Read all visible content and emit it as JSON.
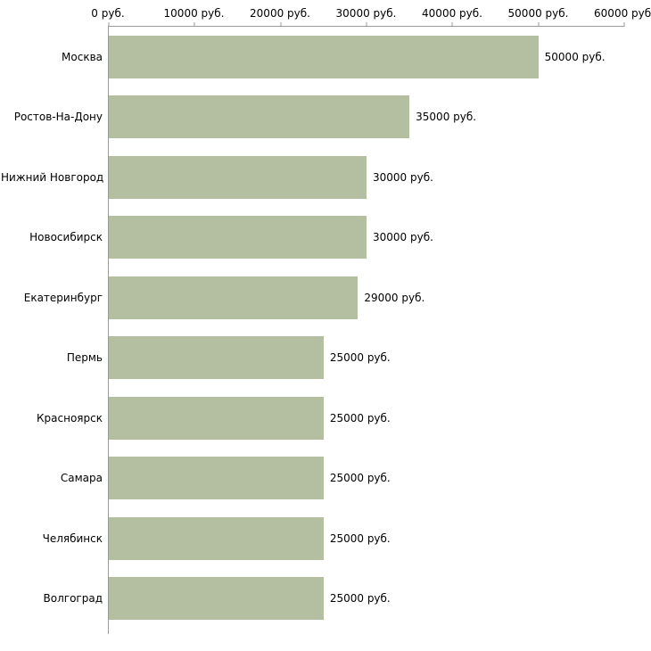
{
  "chart_data": {
    "type": "bar",
    "orientation": "horizontal",
    "title": "",
    "xlabel": "",
    "ylabel": "",
    "categories": [
      "Москва",
      "Ростов-На-Дону",
      "Нижний Новгород",
      "Новосибирск",
      "Екатеринбург",
      "Пермь",
      "Красноярск",
      "Самара",
      "Челябинск",
      "Волгоград"
    ],
    "values": [
      50000,
      35000,
      30000,
      30000,
      29000,
      25000,
      25000,
      25000,
      25000,
      25000
    ],
    "value_labels": [
      "50000 руб.",
      "35000 руб.",
      "30000 руб.",
      "30000 руб.",
      "29000 руб.",
      "25000 руб.",
      "25000 руб.",
      "25000 руб.",
      "25000 руб.",
      "25000 руб."
    ],
    "x_ticks": [
      "0 руб.",
      "10000 руб.",
      "20000 руб.",
      "30000 руб.",
      "40000 руб.",
      "50000 руб.",
      "60000 руб."
    ],
    "xlim": [
      0,
      60000
    ],
    "grid": false,
    "legend": false,
    "bar_color": "#b4bfa2",
    "axis_color": "#9a9a9a",
    "background_color": "#ffffff"
  }
}
